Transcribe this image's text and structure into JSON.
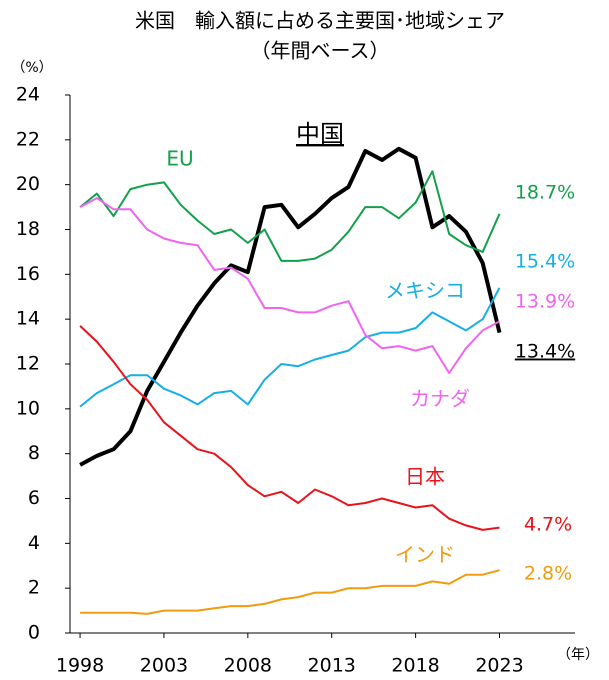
{
  "chart_data": {
    "type": "line",
    "title": "米国　輸入額に占める主要国･地域シェア",
    "subtitle": "（年間ベース）",
    "y_unit": "（%）",
    "x_unit": "（年）",
    "x": [
      1998,
      1999,
      2000,
      2001,
      2002,
      2003,
      2004,
      2005,
      2006,
      2007,
      2008,
      2009,
      2010,
      2011,
      2012,
      2013,
      2014,
      2015,
      2016,
      2017,
      2018,
      2019,
      2020,
      2021,
      2022,
      2023
    ],
    "xlim": [
      1997.4,
      2027.5
    ],
    "xticks": [
      1998,
      2003,
      2008,
      2013,
      2018,
      2023
    ],
    "ylim": [
      0,
      24
    ],
    "yticks": [
      0,
      2,
      4,
      6,
      8,
      10,
      12,
      14,
      16,
      18,
      20,
      22,
      24
    ],
    "series": [
      {
        "name": "中国",
        "color": "#000000",
        "values": [
          7.5,
          7.9,
          8.2,
          9.0,
          10.8,
          12.1,
          13.4,
          14.6,
          15.6,
          16.4,
          16.1,
          19.0,
          19.1,
          18.1,
          18.7,
          19.4,
          19.9,
          21.5,
          21.1,
          21.6,
          21.2,
          18.1,
          18.6,
          17.9,
          16.5,
          13.4
        ],
        "value_labels": [
          null,
          null,
          null,
          null,
          null,
          null,
          null,
          null,
          null,
          null,
          null,
          null,
          null,
          null,
          null,
          null,
          null,
          null,
          null,
          null,
          null,
          null,
          null,
          null,
          null,
          "13.4%"
        ]
      },
      {
        "name": "EU",
        "color": "#13a04a",
        "values": [
          19.0,
          19.6,
          18.6,
          19.8,
          20.0,
          20.1,
          19.1,
          18.4,
          17.8,
          18.0,
          17.4,
          18.0,
          16.6,
          16.6,
          16.7,
          17.1,
          17.9,
          19.0,
          19.0,
          18.5,
          19.2,
          20.6,
          17.8,
          17.3,
          17.0,
          18.7
        ],
        "value_labels": [
          null,
          null,
          null,
          null,
          null,
          null,
          null,
          null,
          null,
          null,
          null,
          null,
          null,
          null,
          null,
          null,
          null,
          null,
          null,
          null,
          null,
          null,
          null,
          null,
          null,
          "18.7%"
        ]
      },
      {
        "name": "メキシコ",
        "color": "#16aee6",
        "values": [
          10.1,
          10.7,
          11.1,
          11.5,
          11.5,
          10.9,
          10.6,
          10.2,
          10.7,
          10.8,
          10.2,
          11.3,
          12.0,
          11.9,
          12.2,
          12.4,
          12.6,
          13.2,
          13.4,
          13.4,
          13.6,
          14.3,
          13.9,
          13.5,
          14.0,
          15.4
        ],
        "value_labels": [
          null,
          null,
          null,
          null,
          null,
          null,
          null,
          null,
          null,
          null,
          null,
          null,
          null,
          null,
          null,
          null,
          null,
          null,
          null,
          null,
          null,
          null,
          null,
          null,
          null,
          "15.4%"
        ]
      },
      {
        "name": "カナダ",
        "color": "#f064f0",
        "values": [
          19.0,
          19.4,
          18.9,
          18.9,
          18.0,
          17.6,
          17.4,
          17.3,
          16.2,
          16.3,
          15.8,
          14.5,
          14.5,
          14.3,
          14.3,
          14.6,
          14.8,
          13.3,
          12.7,
          12.8,
          12.6,
          12.8,
          11.6,
          12.7,
          13.5,
          13.9
        ],
        "value_labels": [
          null,
          null,
          null,
          null,
          null,
          null,
          null,
          null,
          null,
          null,
          null,
          null,
          null,
          null,
          null,
          null,
          null,
          null,
          null,
          null,
          null,
          null,
          null,
          null,
          null,
          "13.9%"
        ]
      },
      {
        "name": "日本",
        "color": "#e8131b",
        "values": [
          13.7,
          13.0,
          12.1,
          11.1,
          10.4,
          9.4,
          8.8,
          8.2,
          8.0,
          7.4,
          6.6,
          6.1,
          6.3,
          5.8,
          6.4,
          6.1,
          5.7,
          5.8,
          6.0,
          5.8,
          5.6,
          5.7,
          5.1,
          4.8,
          4.6,
          4.7
        ],
        "value_labels": [
          null,
          null,
          null,
          null,
          null,
          null,
          null,
          null,
          null,
          null,
          null,
          null,
          null,
          null,
          null,
          null,
          null,
          null,
          null,
          null,
          null,
          null,
          null,
          null,
          null,
          "4.7%"
        ]
      },
      {
        "name": "インド",
        "color": "#f29b11",
        "values": [
          0.9,
          0.9,
          0.9,
          0.9,
          0.85,
          1.0,
          1.0,
          1.0,
          1.1,
          1.2,
          1.2,
          1.3,
          1.5,
          1.6,
          1.8,
          1.8,
          2.0,
          2.0,
          2.1,
          2.1,
          2.1,
          2.3,
          2.2,
          2.6,
          2.6,
          2.8
        ],
        "value_labels": [
          null,
          null,
          null,
          null,
          null,
          null,
          null,
          null,
          null,
          null,
          null,
          null,
          null,
          null,
          null,
          null,
          null,
          null,
          null,
          null,
          null,
          null,
          null,
          null,
          null,
          "2.8%"
        ]
      }
    ]
  }
}
